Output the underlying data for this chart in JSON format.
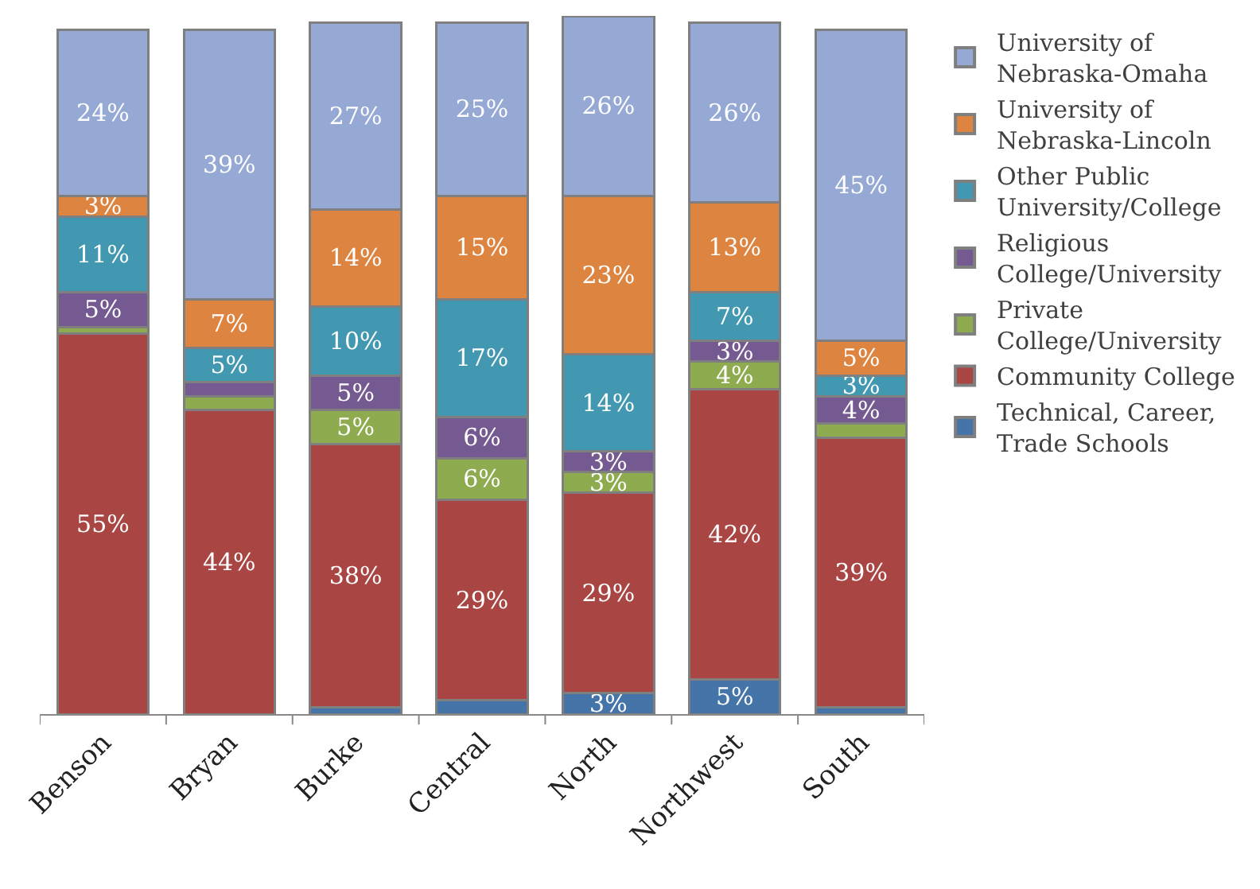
{
  "chart_data": {
    "type": "bar",
    "stacked": true,
    "categories": [
      "Benson",
      "Bryan",
      "Burke",
      "Central",
      "North",
      "Northwest",
      "South"
    ],
    "ylim": [
      0,
      101
    ],
    "tick_labels": "x",
    "legend": "right",
    "series": [
      {
        "name": "Technical, Career, Trade Schools",
        "color": "#4574a8",
        "values": [
          0,
          0,
          1,
          2,
          3,
          5,
          1
        ],
        "value_labels": [
          null,
          null,
          null,
          null,
          "3%",
          "5%",
          null
        ]
      },
      {
        "name": "Community College",
        "color": "#a94542",
        "values": [
          55,
          44,
          38,
          29,
          29,
          42,
          39
        ],
        "value_labels": [
          "55%",
          "44%",
          "38%",
          "29%",
          "29%",
          "42%",
          "39%"
        ]
      },
      {
        "name": "Private College/University",
        "color": "#8eac4f",
        "values": [
          1,
          2,
          5,
          6,
          3,
          4,
          2
        ],
        "value_labels": [
          null,
          null,
          "5%",
          "6%",
          "3%",
          "4%",
          null
        ]
      },
      {
        "name": "Religious College/University",
        "color": "#745a90",
        "values": [
          5,
          2,
          5,
          6,
          3,
          3,
          4
        ],
        "value_labels": [
          "5%",
          null,
          "5%",
          "6%",
          "3%",
          "3%",
          "4%"
        ]
      },
      {
        "name": "Other Public University/College",
        "color": "#4298b0",
        "values": [
          11,
          5,
          10,
          17,
          14,
          7,
          3
        ],
        "value_labels": [
          "11%",
          "5%",
          "10%",
          "17%",
          "14%",
          "7%",
          "3%"
        ]
      },
      {
        "name": "University of Nebraska-Lincoln",
        "color": "#dd8440",
        "values": [
          3,
          7,
          14,
          15,
          23,
          13,
          5
        ],
        "value_labels": [
          "3%",
          "7%",
          "14%",
          "15%",
          "23%",
          "13%",
          "5%"
        ]
      },
      {
        "name": "University of Nebraska-Omaha",
        "color": "#95a9d4",
        "values": [
          24,
          39,
          27,
          25,
          26,
          26,
          45
        ],
        "value_labels": [
          "24%",
          "39%",
          "27%",
          "25%",
          "26%",
          "26%",
          "45%"
        ]
      }
    ]
  }
}
